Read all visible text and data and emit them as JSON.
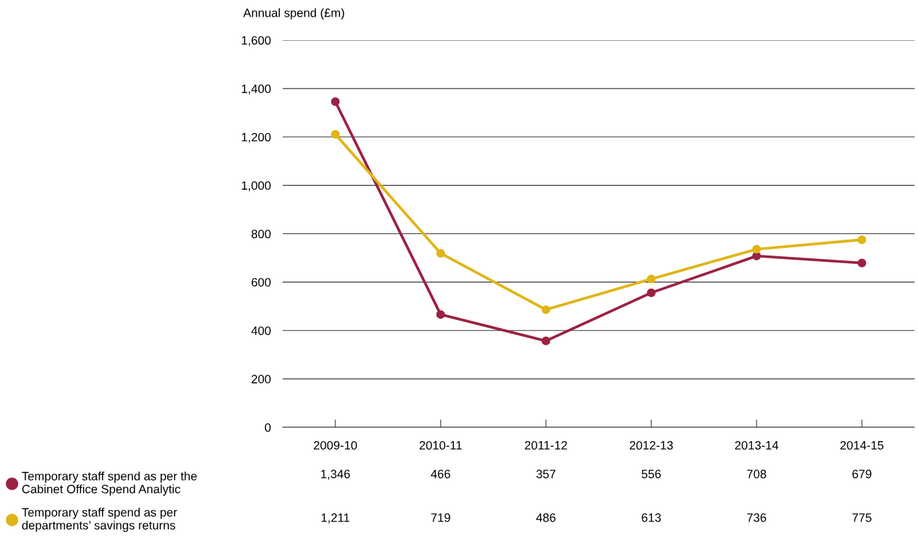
{
  "chart_data": {
    "type": "line",
    "ylabel": "Annual spend (£m)",
    "categories": [
      "2009-10",
      "2010-11",
      "2011-12",
      "2012-13",
      "2013-14",
      "2014-15"
    ],
    "series": [
      {
        "name": "Temporary staff spend as per the\nCabinet Office Spend Analytic",
        "color": "#9b2242",
        "values": [
          1346,
          466,
          357,
          556,
          708,
          679
        ],
        "value_labels": [
          "1,346",
          "466",
          "357",
          "556",
          "708",
          "679"
        ]
      },
      {
        "name": "Temporary staff spend as per\ndepartments’ savings returns",
        "color": "#e0b516",
        "values": [
          1211,
          719,
          486,
          613,
          736,
          775
        ],
        "value_labels": [
          "1,211",
          "719",
          "486",
          "613",
          "736",
          "775"
        ]
      }
    ],
    "ylim": [
      0,
      1600
    ],
    "yticks": [
      0,
      200,
      400,
      600,
      800,
      {
        "value": 1000,
        "label": "1,000"
      },
      {
        "value": 1200,
        "label": "1,200"
      },
      {
        "value": 1400,
        "label": "1,400"
      },
      {
        "value": 1600,
        "label": "1,600"
      }
    ],
    "grid": "y",
    "legend": "bottom left",
    "marker": "circle",
    "line_style": "solid"
  }
}
